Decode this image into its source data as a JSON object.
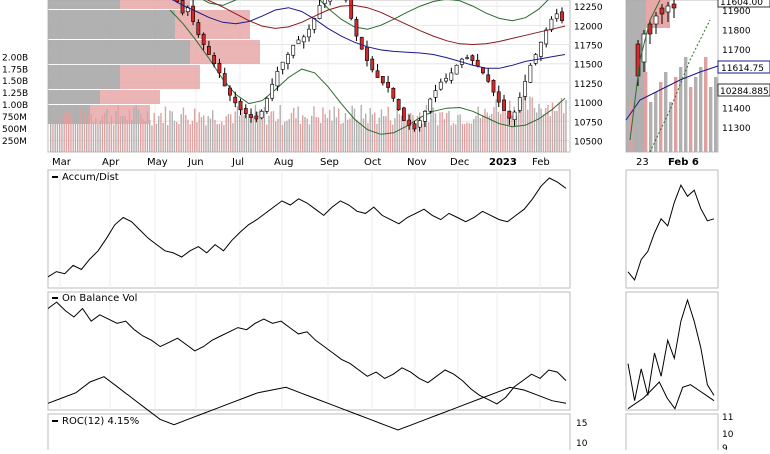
{
  "chart_data": [
    {
      "type": "candlestick",
      "panel": "main",
      "title": "",
      "x_month_labels": [
        "Mar",
        "Apr",
        "May",
        "Jun",
        "Jul",
        "Aug",
        "Sep",
        "Oct",
        "Nov",
        "Dec",
        "2023",
        "Feb"
      ],
      "ylim": [
        10350,
        12330
      ],
      "y_ticks": [
        "12250",
        "12000",
        "11750",
        "11500",
        "11250",
        "11000",
        "10750",
        "10500"
      ],
      "volume_ticks": [
        "2.00B",
        "1.75B",
        "1.50B",
        "1.25B",
        "1.00B",
        "750M",
        "500M",
        "250M"
      ],
      "volume_ylim": [
        0,
        2.55
      ],
      "close": [
        12480,
        12310,
        12160,
        12230,
        12050,
        11880,
        11750,
        11620,
        11500,
        11380,
        11210,
        11090,
        10990,
        10900,
        10850,
        10800,
        10780,
        10880,
        11050,
        11230,
        11400,
        11520,
        11620,
        11740,
        11810,
        11850,
        11950,
        12090,
        12260,
        12340,
        12420,
        12480,
        12500,
        12330,
        12090,
        11860,
        11690,
        11540,
        11420,
        11320,
        11250,
        11190,
        11050,
        10900,
        10760,
        10700,
        10650,
        10760,
        10880,
        11040,
        11150,
        11260,
        11310,
        11380,
        11480,
        11560,
        11580,
        11540,
        11470,
        11380,
        11270,
        11130,
        11000,
        10890,
        10790,
        10870,
        11060,
        11270,
        11480,
        11620,
        11780,
        11940,
        12080,
        12150,
        12060
      ],
      "sma_blue": [
        12350,
        12260,
        12180,
        12100,
        12040,
        12020,
        12050,
        12120,
        12200,
        12230,
        12180,
        12080,
        11960,
        11860,
        11780,
        11720,
        11680,
        11660,
        11650,
        11640,
        11620,
        11580,
        11530,
        11480,
        11440,
        11440,
        11480,
        11530,
        11560,
        11590,
        11620
      ],
      "sma_red": [
        12480,
        12440,
        12390,
        12320,
        12240,
        12150,
        12060,
        11990,
        11960,
        11980,
        12040,
        12120,
        12200,
        12250,
        12260,
        12230,
        12170,
        12090,
        12010,
        11930,
        11860,
        11800,
        11760,
        11750,
        11760,
        11790,
        11830,
        11870,
        11910,
        11950,
        11990
      ],
      "bollinger_upper": [
        12600,
        12500,
        12380,
        12290,
        12260,
        12330,
        12460,
        12600,
        12700,
        12680,
        12560,
        12400,
        12220,
        12080,
        11980,
        11950,
        12000,
        12080,
        12170,
        12250,
        12310,
        12340,
        12320,
        12250,
        12160,
        12090,
        12060,
        12100,
        12210,
        12380,
        12560
      ],
      "bollinger_lower": [
        12200,
        12020,
        11800,
        11560,
        11300,
        11100,
        10980,
        11020,
        11160,
        11320,
        11430,
        11380,
        11200,
        10980,
        10780,
        10640,
        10580,
        10600,
        10690,
        10800,
        10880,
        10920,
        10930,
        10880,
        10800,
        10720,
        10680,
        10700,
        10780,
        10900,
        11050
      ],
      "price_labels": [
        "11604.00",
        "11614.75",
        "10284.885"
      ],
      "right_ticks": [
        "11900",
        "11800",
        "11700",
        "11600",
        "11500",
        "11400",
        "11300"
      ],
      "inset_x_labels": [
        "23",
        "Feb 6"
      ]
    },
    {
      "type": "line",
      "name": "Accum/Dist",
      "values": [
        0.05,
        0.1,
        0.08,
        0.16,
        0.12,
        0.22,
        0.3,
        0.42,
        0.55,
        0.62,
        0.58,
        0.5,
        0.42,
        0.36,
        0.3,
        0.28,
        0.24,
        0.3,
        0.34,
        0.28,
        0.36,
        0.3,
        0.4,
        0.48,
        0.55,
        0.6,
        0.66,
        0.72,
        0.78,
        0.74,
        0.8,
        0.76,
        0.7,
        0.64,
        0.72,
        0.78,
        0.74,
        0.68,
        0.66,
        0.72,
        0.64,
        0.6,
        0.56,
        0.62,
        0.66,
        0.7,
        0.64,
        0.6,
        0.66,
        0.62,
        0.58,
        0.62,
        0.68,
        0.64,
        0.6,
        0.58,
        0.64,
        0.7,
        0.8,
        0.92,
        1.0,
        0.96,
        0.9
      ],
      "inset_values": [
        0.1,
        0.02,
        0.22,
        0.3,
        0.48,
        0.62,
        0.55,
        0.78,
        0.95,
        0.84,
        0.9,
        0.72,
        0.6,
        0.62
      ]
    },
    {
      "type": "line",
      "name": "On Balance Vol",
      "values": [
        0.92,
        0.98,
        0.9,
        0.84,
        0.92,
        0.8,
        0.86,
        0.82,
        0.78,
        0.8,
        0.72,
        0.66,
        0.62,
        0.56,
        0.6,
        0.64,
        0.58,
        0.52,
        0.56,
        0.62,
        0.66,
        0.7,
        0.74,
        0.72,
        0.78,
        0.82,
        0.78,
        0.8,
        0.74,
        0.68,
        0.7,
        0.62,
        0.56,
        0.5,
        0.44,
        0.4,
        0.34,
        0.28,
        0.32,
        0.26,
        0.3,
        0.36,
        0.32,
        0.26,
        0.22,
        0.28,
        0.34,
        0.3,
        0.24,
        0.16,
        0.1,
        0.06,
        0.02,
        0.08,
        0.18,
        0.24,
        0.3,
        0.26,
        0.34,
        0.32,
        0.24
      ],
      "inset_values": [
        0.4,
        0.05,
        0.35,
        0.1,
        0.5,
        0.28,
        0.62,
        0.45,
        0.8,
        1.0,
        0.8,
        0.55,
        0.2,
        0.1
      ]
    },
    {
      "type": "line",
      "name": "ROC(12)",
      "label": "ROC(12) 4.15%",
      "y_ticks": [
        "15",
        "10"
      ],
      "ylim": [
        -15,
        15
      ],
      "values": [
        4,
        6,
        8,
        12,
        14,
        10,
        6,
        2,
        -2,
        -4,
        -2,
        0,
        2,
        4,
        6,
        8,
        9,
        10,
        8,
        6,
        4,
        2,
        0,
        -2,
        -4,
        -6,
        -4,
        -2,
        0,
        2,
        4,
        6,
        8,
        10,
        9,
        7,
        5,
        4
      ],
      "right_ticks": [
        "11",
        "10",
        "9"
      ],
      "inset_values": [
        2,
        4,
        6,
        9,
        12,
        6,
        2,
        10,
        11,
        9,
        7,
        5
      ]
    }
  ]
}
